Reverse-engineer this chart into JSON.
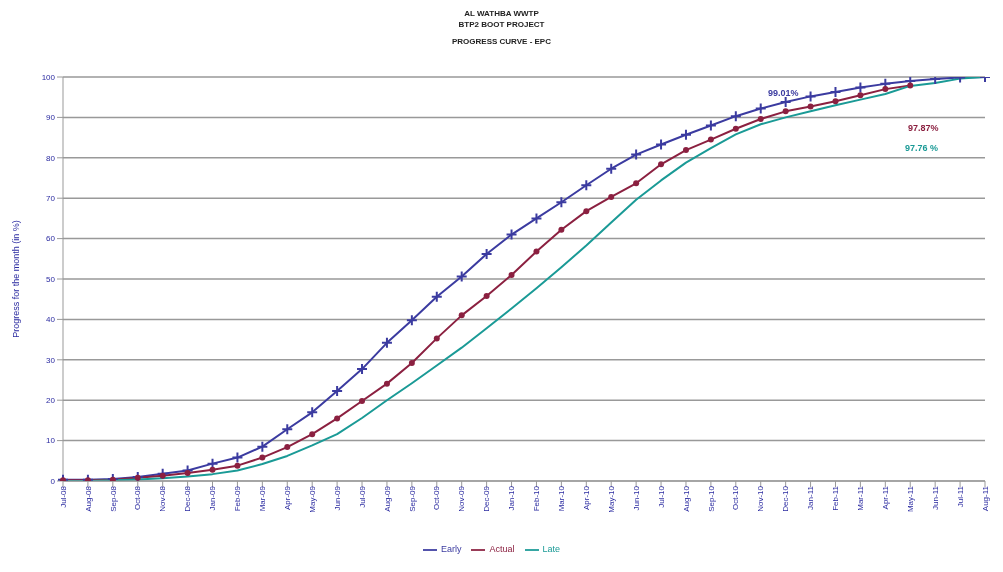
{
  "chart_data": {
    "type": "line",
    "title": "AL WATHBA WWTP",
    "subtitle": "BTP2 BOOT PROJECT\nPROGRESS CURVE - EPC",
    "ylabel": "Progress for the month (in %)",
    "categories": [
      "Jul-08",
      "Aug-08",
      "Sep-08",
      "Oct-08",
      "Nov-08",
      "Dec-08",
      "Jan-09",
      "Feb-09",
      "Mar-09",
      "Apr-09",
      "May-09",
      "Jun-09",
      "Jul-09",
      "Aug-09",
      "Sep-09",
      "Oct-09",
      "Nov-09",
      "Dec-09",
      "Jan-10",
      "Feb-10",
      "Mar-10",
      "Apr-10",
      "May-10",
      "Jun-10",
      "Jul-10",
      "Aug-10",
      "Sep-10",
      "Oct-10",
      "Nov-10",
      "Dec-10",
      "Jan-11",
      "Feb-11",
      "Mar-11",
      "Apr-11",
      "May-11",
      "Jun-11",
      "Jul-11",
      "Aug-11"
    ],
    "series": [
      {
        "name": "Early",
        "color": "#3b3ba0",
        "marker": "cross",
        "values": [
          0.3,
          0.3,
          0.5,
          1.0,
          1.8,
          2.6,
          4.3,
          5.8,
          8.5,
          12.8,
          17,
          22.3,
          27.7,
          34.2,
          39.8,
          45.6,
          50.6,
          56.2,
          61,
          65,
          69,
          73.2,
          77.3,
          80.8,
          83.3,
          85.7,
          88,
          90.3,
          92.2,
          93.8,
          95.2,
          96.3,
          97.4,
          98.3,
          99,
          99.5,
          99.9,
          100
        ]
      },
      {
        "name": "Actual",
        "color": "#8b2040",
        "marker": "circle",
        "values": [
          0.2,
          0.2,
          0.3,
          0.8,
          1.3,
          2,
          2.8,
          3.8,
          5.8,
          8.4,
          11.6,
          15.5,
          19.8,
          24.1,
          29.2,
          35.3,
          41,
          45.8,
          51,
          56.8,
          62.2,
          66.8,
          70.3,
          73.7,
          78.4,
          81.9,
          84.5,
          87.2,
          89.6,
          91.5,
          92.7,
          94,
          95.5,
          97,
          97.9,
          null,
          null,
          null
        ]
      },
      {
        "name": "Late",
        "color": "#1a9a96",
        "marker": "none",
        "values": [
          0,
          0,
          0.2,
          0.4,
          0.7,
          1.1,
          1.7,
          2.6,
          4.2,
          6.2,
          8.8,
          11.6,
          15.6,
          20,
          24.2,
          28.6,
          33,
          37.8,
          42.7,
          47.7,
          52.9,
          58.3,
          64,
          69.6,
          74.4,
          78.8,
          82.4,
          85.8,
          88.3,
          90,
          91.5,
          93,
          94.4,
          95.8,
          97.8,
          98.5,
          99.6,
          100
        ]
      }
    ],
    "annotations": [
      "99.01%",
      "97.87%",
      "97.76 %"
    ],
    "ylim": [
      0,
      100
    ],
    "yticks": [
      0,
      10,
      20,
      30,
      40,
      50,
      60,
      70,
      80,
      90,
      100
    ],
    "grid": "y",
    "legend": "bottom",
    "line_style": "solid"
  }
}
